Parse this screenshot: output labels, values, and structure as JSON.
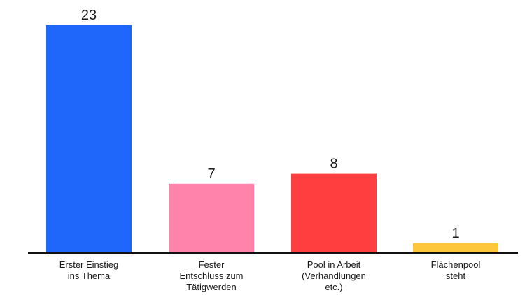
{
  "chart_data": {
    "type": "bar",
    "categories": [
      [
        "Erster Einstieg",
        "ins Thema"
      ],
      [
        "Fester",
        "Entschluss zum",
        "Tätigwerden"
      ],
      [
        "Pool in Arbeit",
        "(Verhandlungen",
        "etc.)"
      ],
      [
        "Flächenpool",
        "steht"
      ]
    ],
    "values": [
      23,
      7,
      8,
      1
    ],
    "colors": [
      "#1f66fb",
      "#ff83ab",
      "#ff3f3f",
      "#fdc73b"
    ],
    "ylim": [
      0,
      23
    ],
    "grid": false,
    "legend": "none"
  }
}
